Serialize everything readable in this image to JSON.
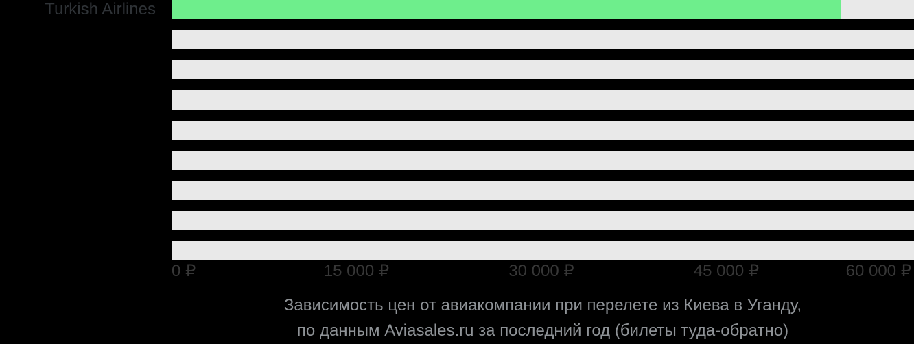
{
  "chart_data": {
    "type": "bar",
    "orientation": "horizontal",
    "categories": [
      "Turkish Airlines",
      "",
      "",
      "",
      "",
      "",
      "",
      "",
      ""
    ],
    "values": [
      54300,
      null,
      null,
      null,
      null,
      null,
      null,
      null,
      null
    ],
    "value_unit": "₽",
    "xlim": [
      0,
      60223
    ],
    "x_ticks": [
      {
        "value": 0,
        "label": "0 ₽"
      },
      {
        "value": 15000,
        "label": "15 000 ₽"
      },
      {
        "value": 30000,
        "label": "30 000 ₽"
      },
      {
        "value": 45000,
        "label": "45 000 ₽"
      },
      {
        "value": 60000,
        "label": "60 000 ₽"
      }
    ],
    "grid": false,
    "legend": false,
    "caption": {
      "line1": "Зависимость цен от авиакомпании при перелете из Киева в Уганду,",
      "line2": "по данным Aviasales.ru за последний год (билеты туда-обратно)"
    },
    "colors": {
      "background": "#000000",
      "bar_fill": "#6eee8c",
      "bar_track": "#e9e9e9",
      "category_label": "#2f3337",
      "axis_label": "#373737",
      "caption": "#8e9296"
    }
  }
}
